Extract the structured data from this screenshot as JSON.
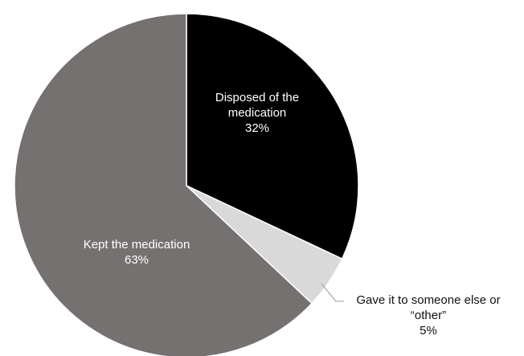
{
  "chart_data": {
    "type": "pie",
    "start_angle_deg": 0,
    "direction": "clockwise",
    "slices": [
      {
        "label_lines": [
          "Disposed of the",
          "medication"
        ],
        "value": 32,
        "value_label": "32%",
        "color": "#000000",
        "label_color": "#ffffff",
        "label_placement": "inside"
      },
      {
        "label_lines": [
          "Gave it to someone else or",
          "“other”"
        ],
        "value": 5,
        "value_label": "5%",
        "color": "#d9d9d9",
        "label_color": "#111111",
        "label_placement": "outside-with-leader"
      },
      {
        "label_lines": [
          "Kept the medication"
        ],
        "value": 63,
        "value_label": "63%",
        "color": "#767171",
        "label_color": "#ffffff",
        "label_placement": "inside"
      }
    ],
    "title": "",
    "legend": "none"
  }
}
